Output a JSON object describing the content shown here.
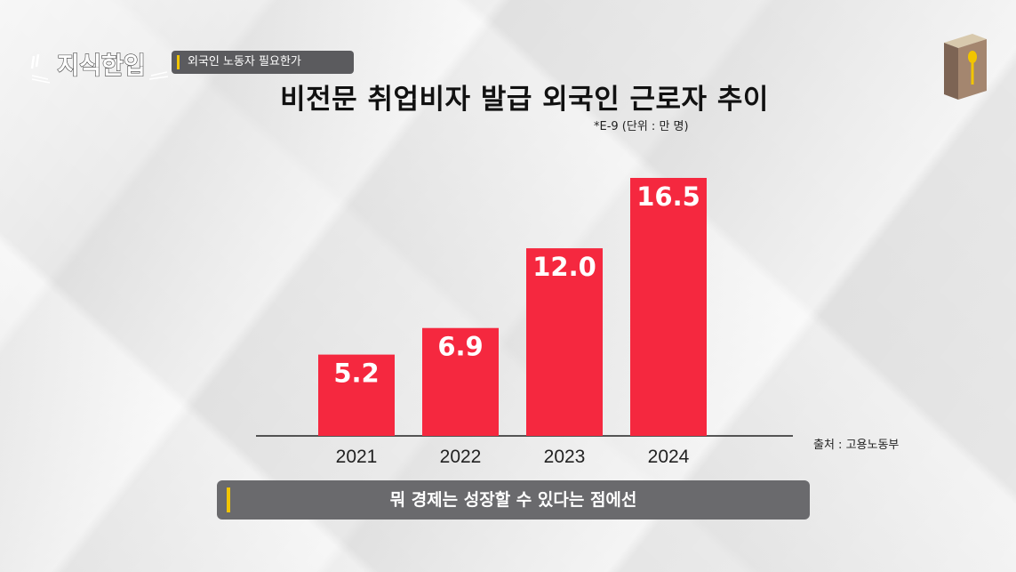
{
  "channel": {
    "logo_text": "지식한입",
    "topic_label": "외국인 노동자 필요한가",
    "logo_icon": "book-with-spoon-icon"
  },
  "notes": {
    "unit": "*E-9 (단위 : 만 명)",
    "source": "출처 : 고용노동부"
  },
  "subtitle": "뭐 경제는 성장할 수 있다는 점에선",
  "colors": {
    "bar": "#f5283f",
    "background": "#efefef",
    "label_box": "#5b5b5e",
    "accent": "#f2c500"
  },
  "chart_data": {
    "type": "bar",
    "title": "비전문 취업비자 발급 외국인 근로자 추이",
    "categories": [
      "2021",
      "2022",
      "2023",
      "2024"
    ],
    "values": [
      5.2,
      6.9,
      12.0,
      16.5
    ],
    "value_labels": [
      "5.2",
      "6.9",
      "12.0",
      "16.5"
    ],
    "xlabel": "",
    "ylabel": "",
    "ylim": [
      0,
      17
    ],
    "grid": false,
    "legend": "none"
  }
}
